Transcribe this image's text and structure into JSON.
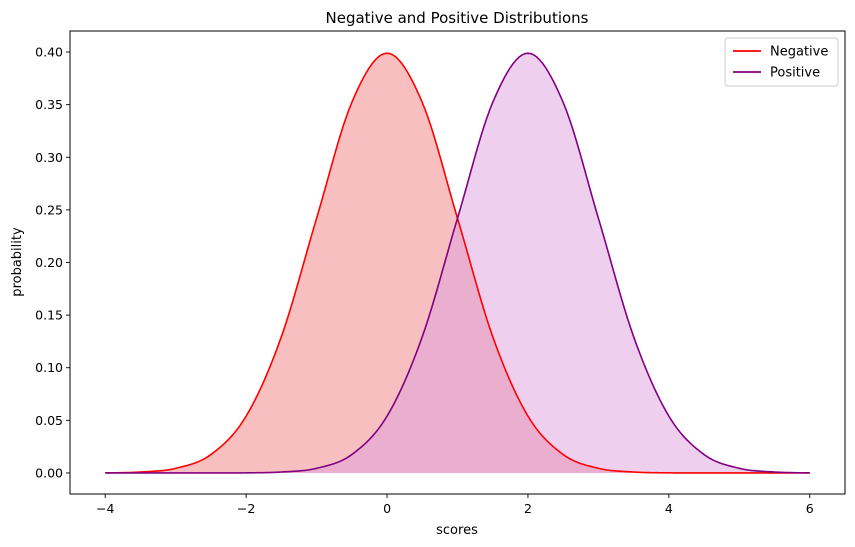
{
  "chart_data": {
    "type": "area",
    "title": "Negative and Positive Distributions",
    "xlabel": "scores",
    "ylabel": "probability",
    "xlim": [
      -4.5,
      6.5
    ],
    "ylim": [
      -0.02,
      0.42
    ],
    "xticks": [
      -4,
      -2,
      0,
      2,
      4,
      6
    ],
    "xtick_labels": [
      "−4",
      "−2",
      "0",
      "2",
      "4",
      "6"
    ],
    "yticks": [
      0.0,
      0.05,
      0.1,
      0.15,
      0.2,
      0.25,
      0.3,
      0.35,
      0.4
    ],
    "ytick_labels": [
      "0.00",
      "0.05",
      "0.10",
      "0.15",
      "0.20",
      "0.25",
      "0.30",
      "0.35",
      "0.40"
    ],
    "legend_position": "top-right",
    "grid": false,
    "series": [
      {
        "name": "Negative",
        "color": "#ff0000",
        "fill": "#f08080",
        "x": [
          -4.0,
          -3.5,
          -3.0,
          -2.5,
          -2.0,
          -1.5,
          -1.0,
          -0.5,
          0.0,
          0.5,
          1.0,
          1.5,
          2.0,
          2.5,
          3.0,
          3.5,
          4.0,
          4.5,
          5.0,
          5.5,
          6.0
        ],
        "y": [
          0.0001,
          0.0009,
          0.0044,
          0.0175,
          0.054,
          0.1295,
          0.242,
          0.3521,
          0.3989,
          0.3521,
          0.242,
          0.1295,
          0.054,
          0.0175,
          0.0044,
          0.0009,
          0.0001,
          0.0,
          0.0,
          0.0,
          0.0
        ]
      },
      {
        "name": "Positive",
        "color": "#800080",
        "fill": "#dda0dd",
        "x": [
          -4.0,
          -3.5,
          -3.0,
          -2.5,
          -2.0,
          -1.5,
          -1.0,
          -0.5,
          0.0,
          0.5,
          1.0,
          1.5,
          2.0,
          2.5,
          3.0,
          3.5,
          4.0,
          4.5,
          5.0,
          5.5,
          6.0
        ],
        "y": [
          0.0,
          0.0,
          0.0,
          0.0,
          0.0001,
          0.0009,
          0.0044,
          0.0175,
          0.054,
          0.1295,
          0.242,
          0.3521,
          0.3989,
          0.3521,
          0.242,
          0.1295,
          0.054,
          0.0175,
          0.0044,
          0.0009,
          0.0001
        ]
      }
    ]
  }
}
